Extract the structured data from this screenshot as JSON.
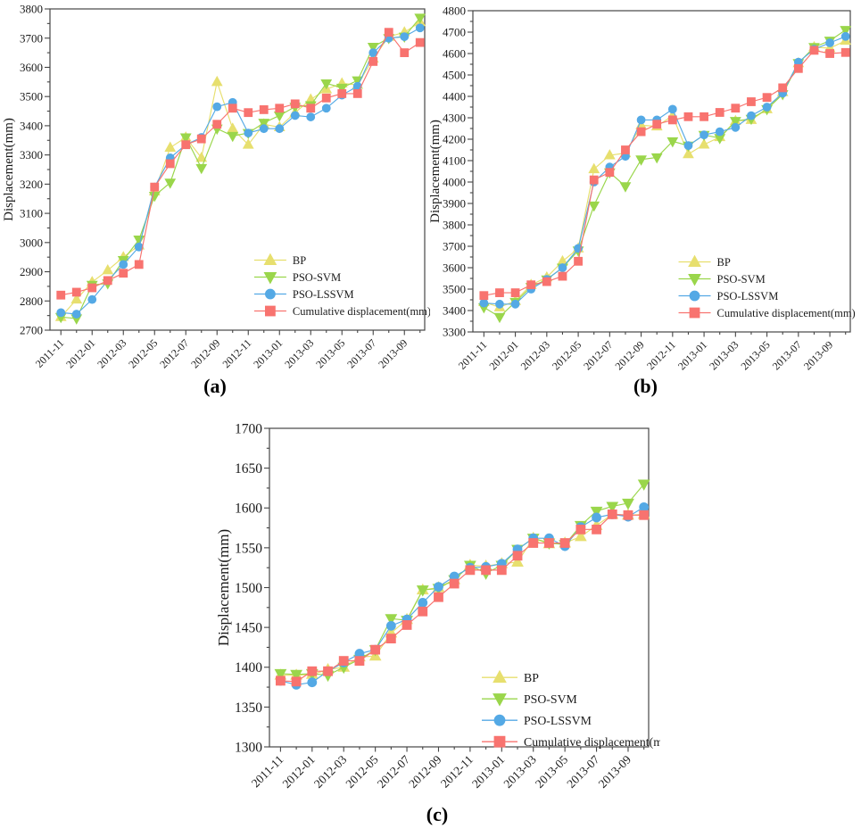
{
  "figure": {
    "background": "#ffffff",
    "axis_color": "#454545",
    "captions": [
      "(a)",
      "(b)",
      "(c)"
    ]
  },
  "chart_data": [
    {
      "type": "line",
      "caption": "(a)",
      "ylabel": "Displacement(mm)",
      "ylim": [
        2700,
        3800
      ],
      "y_tick_step": 100,
      "y_minor_step": 50,
      "y_ticks": [
        2700,
        2800,
        2900,
        3000,
        3100,
        3200,
        3300,
        3400,
        3500,
        3600,
        3700,
        3800
      ],
      "x_tick_label_every": 2,
      "x_tick_labels": [
        "2011-11",
        "2012-01",
        "2012-03",
        "2012-05",
        "2012-07",
        "2012-09",
        "2012-11",
        "2013-01",
        "2013-03",
        "2013-05",
        "2013-07",
        "2013-09"
      ],
      "categories": [
        "2011-11",
        "2011-12",
        "2012-01",
        "2012-02",
        "2012-03",
        "2012-04",
        "2012-05",
        "2012-06",
        "2012-07",
        "2012-08",
        "2012-09",
        "2012-10",
        "2012-11",
        "2012-12",
        "2013-01",
        "2013-02",
        "2013-03",
        "2013-04",
        "2013-05",
        "2013-06",
        "2013-07",
        "2013-08",
        "2013-09",
        "2013-10"
      ],
      "legend_position": "lower right inside",
      "grid": false,
      "series": [
        {
          "name": "BP",
          "color": "#e7df6e",
          "marker": "triangle-up",
          "values": [
            2745,
            2805,
            2865,
            2905,
            2950,
            2990,
            3175,
            3325,
            3360,
            3290,
            3550,
            3390,
            3335,
            3405,
            3395,
            3445,
            3490,
            3525,
            3545,
            3540,
            3630,
            3705,
            3720,
            3755
          ]
        },
        {
          "name": "PSO-SVM",
          "color": "#9ad64b",
          "marker": "triangle-down",
          "values": [
            2745,
            2740,
            2855,
            2860,
            2940,
            3010,
            3160,
            3205,
            3360,
            3255,
            3390,
            3365,
            3375,
            3410,
            3435,
            3465,
            3470,
            3545,
            3530,
            3555,
            3670,
            3700,
            3705,
            3770
          ]
        },
        {
          "name": "PSO-LSSVM",
          "color": "#54a9e5",
          "marker": "circle",
          "values": [
            2760,
            2755,
            2805,
            2870,
            2925,
            2985,
            3190,
            3290,
            3335,
            3360,
            3465,
            3480,
            3375,
            3390,
            3390,
            3435,
            3430,
            3460,
            3505,
            3535,
            3650,
            3700,
            3705,
            3735
          ]
        },
        {
          "name": "Cumulative displacement(mm)",
          "color": "#f8736f",
          "marker": "square",
          "values": [
            2820,
            2830,
            2845,
            2870,
            2895,
            2925,
            3190,
            3270,
            3335,
            3355,
            3405,
            3460,
            3445,
            3455,
            3460,
            3475,
            3460,
            3495,
            3510,
            3510,
            3620,
            3720,
            3650,
            3685
          ]
        }
      ]
    },
    {
      "type": "line",
      "caption": "(b)",
      "ylabel": "Displacement(mm)",
      "ylim": [
        3300,
        4800
      ],
      "y_tick_step": 100,
      "y_minor_step": 50,
      "y_ticks": [
        3300,
        3400,
        3500,
        3600,
        3700,
        3800,
        3900,
        4000,
        4100,
        4200,
        4300,
        4400,
        4500,
        4600,
        4700,
        4800
      ],
      "x_tick_label_every": 2,
      "x_tick_labels": [
        "2011-11",
        "2012-01",
        "2012-03",
        "2012-05",
        "2012-07",
        "2012-09",
        "2012-11",
        "2013-01",
        "2013-03",
        "2013-05",
        "2013-07",
        "2013-09"
      ],
      "categories": [
        "2011-11",
        "2011-12",
        "2012-01",
        "2012-02",
        "2012-03",
        "2012-04",
        "2012-05",
        "2012-06",
        "2012-07",
        "2012-08",
        "2012-09",
        "2012-10",
        "2012-11",
        "2012-12",
        "2013-01",
        "2013-02",
        "2013-03",
        "2013-04",
        "2013-05",
        "2013-06",
        "2013-07",
        "2013-08",
        "2013-09",
        "2013-10"
      ],
      "legend_position": "lower right inside",
      "grid": false,
      "series": [
        {
          "name": "BP",
          "color": "#e7df6e",
          "marker": "triangle-up",
          "values": [
            3440,
            3415,
            3445,
            3520,
            3555,
            3630,
            3690,
            4060,
            4125,
            4135,
            4265,
            4260,
            4310,
            4130,
            4175,
            4210,
            4285,
            4290,
            4340,
            4420,
            4555,
            4630,
            4625,
            4660
          ]
        },
        {
          "name": "PSO-SVM",
          "color": "#9ad64b",
          "marker": "triangle-down",
          "values": [
            3415,
            3370,
            3440,
            3510,
            3545,
            3600,
            3680,
            3890,
            4045,
            3980,
            4105,
            4115,
            4190,
            4170,
            4220,
            4205,
            4285,
            4295,
            4340,
            4410,
            4555,
            4630,
            4660,
            4710
          ]
        },
        {
          "name": "PSO-LSSVM",
          "color": "#54a9e5",
          "marker": "circle",
          "values": [
            3435,
            3430,
            3430,
            3500,
            3545,
            3600,
            3690,
            4000,
            4070,
            4120,
            4290,
            4290,
            4340,
            4170,
            4220,
            4235,
            4255,
            4310,
            4350,
            4415,
            4560,
            4620,
            4650,
            4680
          ]
        },
        {
          "name": "Cumulative displacement(mm)",
          "color": "#f8736f",
          "marker": "square",
          "values": [
            3470,
            3483,
            3483,
            3520,
            3535,
            3560,
            3630,
            4010,
            4045,
            4150,
            4235,
            4270,
            4290,
            4305,
            4305,
            4325,
            4345,
            4375,
            4395,
            4440,
            4530,
            4615,
            4600,
            4605
          ]
        }
      ]
    },
    {
      "type": "line",
      "caption": "(c)",
      "ylabel": "Displacement(mm)",
      "ylim": [
        1300,
        1700
      ],
      "y_tick_step": 50,
      "y_minor_step": 25,
      "y_ticks": [
        1300,
        1350,
        1400,
        1450,
        1500,
        1550,
        1600,
        1650,
        1700
      ],
      "x_tick_label_every": 2,
      "x_tick_labels": [
        "2011-11",
        "2012-01",
        "2012-03",
        "2012-05",
        "2012-07",
        "2012-09",
        "2012-11",
        "2013-01",
        "2013-03",
        "2013-05",
        "2013-07",
        "2013-09"
      ],
      "categories": [
        "2011-11",
        "2011-12",
        "2012-01",
        "2012-02",
        "2012-03",
        "2012-04",
        "2012-05",
        "2012-06",
        "2012-07",
        "2012-08",
        "2012-09",
        "2012-10",
        "2012-11",
        "2012-12",
        "2013-01",
        "2013-02",
        "2013-03",
        "2013-04",
        "2013-05",
        "2013-06",
        "2013-07",
        "2013-08",
        "2013-09",
        "2013-10"
      ],
      "legend_position": "lower right inside",
      "grid": false,
      "series": [
        {
          "name": "BP",
          "color": "#e7df6e",
          "marker": "triangle-up",
          "values": [
            1390,
            1390,
            1391,
            1397,
            1400,
            1413,
            1414,
            1443,
            1460,
            1497,
            1500,
            1510,
            1528,
            1527,
            1530,
            1532,
            1562,
            1555,
            1556,
            1564,
            1578,
            1592,
            1591,
            1592
          ]
        },
        {
          "name": "PSO-SVM",
          "color": "#9ad64b",
          "marker": "triangle-down",
          "values": [
            1392,
            1391,
            1392,
            1390,
            1400,
            1410,
            1422,
            1461,
            1459,
            1497,
            1499,
            1510,
            1528,
            1518,
            1528,
            1548,
            1562,
            1556,
            1554,
            1578,
            1596,
            1602,
            1606,
            1630
          ]
        },
        {
          "name": "PSO-LSSVM",
          "color": "#54a9e5",
          "marker": "circle",
          "values": [
            1383,
            1378,
            1381,
            1395,
            1406,
            1417,
            1422,
            1452,
            1460,
            1481,
            1501,
            1514,
            1525,
            1526,
            1530,
            1548,
            1562,
            1562,
            1552,
            1576,
            1588,
            1592,
            1589,
            1601
          ]
        },
        {
          "name": "Cumulative displacement(mm)",
          "color": "#f8736f",
          "marker": "square",
          "values": [
            1383,
            1382,
            1395,
            1395,
            1408,
            1408,
            1422,
            1436,
            1453,
            1470,
            1488,
            1505,
            1522,
            1522,
            1522,
            1540,
            1556,
            1556,
            1556,
            1573,
            1573,
            1592,
            1591,
            1591
          ]
        }
      ]
    }
  ]
}
